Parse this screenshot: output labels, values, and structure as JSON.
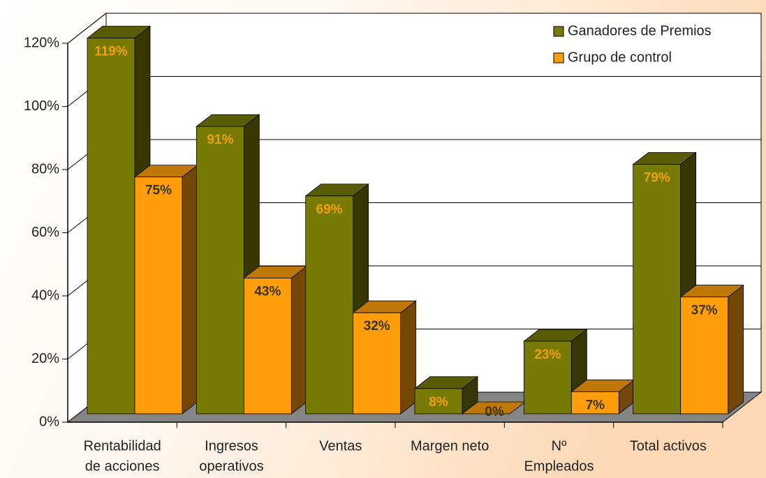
{
  "chart_data": {
    "type": "bar3d",
    "categories": [
      [
        "Rentabilidad",
        "de acciones"
      ],
      [
        "Ingresos",
        "operativos"
      ],
      [
        "Ventas"
      ],
      [
        "Margen neto"
      ],
      [
        "Nº",
        "Empleados"
      ],
      [
        "Total activos"
      ]
    ],
    "series": [
      {
        "name": "Ganadores de Premios",
        "color": "#777a05",
        "values": [
          119,
          91,
          69,
          8,
          23,
          79
        ],
        "value_labels": [
          "119%",
          "91%",
          "69%",
          "8%",
          "23%",
          "79%"
        ]
      },
      {
        "name": "Grupo de control",
        "color": "#ff9e0a",
        "values": [
          75,
          43,
          32,
          0,
          7,
          37
        ],
        "value_labels": [
          "75%",
          "43%",
          "32%",
          "0%",
          "7%",
          "37%"
        ]
      }
    ],
    "ylim": [
      0,
      120
    ],
    "yticks": [
      {
        "value": 0,
        "label": "0%"
      },
      {
        "value": 20,
        "label": "20%"
      },
      {
        "value": 40,
        "label": "40%"
      },
      {
        "value": 60,
        "label": "60%"
      },
      {
        "value": 80,
        "label": "80%"
      },
      {
        "value": 100,
        "label": "100%"
      },
      {
        "value": 120,
        "label": "120%"
      }
    ],
    "grid": true,
    "legend": "top-right"
  }
}
